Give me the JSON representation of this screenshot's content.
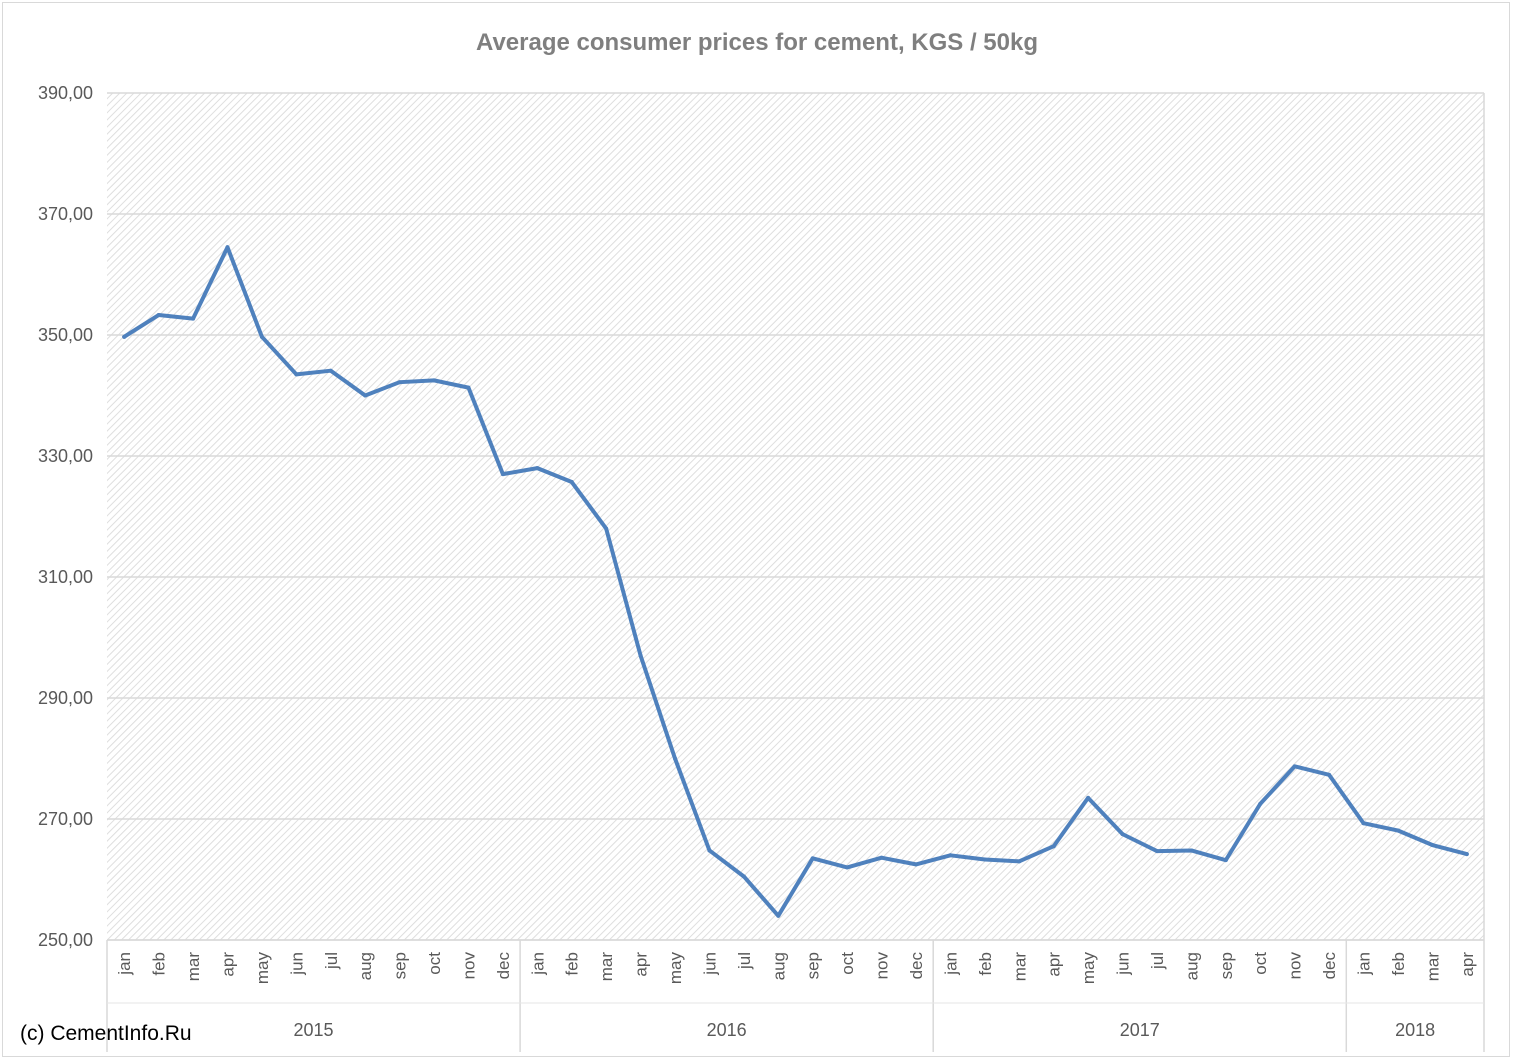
{
  "chart_data": {
    "type": "line",
    "title": "Average consumer prices for cement, KGS / 50kg",
    "xlabel": "",
    "ylabel": "",
    "ylim": [
      250,
      390
    ],
    "yticks": [
      "250,00",
      "270,00",
      "290,00",
      "310,00",
      "330,00",
      "350,00",
      "370,00",
      "390,00"
    ],
    "grid": true,
    "categories": [
      "jan",
      "feb",
      "mar",
      "apr",
      "may",
      "jun",
      "jul",
      "aug",
      "sep",
      "oct",
      "nov",
      "dec",
      "jan",
      "feb",
      "mar",
      "apr",
      "may",
      "jun",
      "jul",
      "aug",
      "sep",
      "oct",
      "nov",
      "dec",
      "jan",
      "feb",
      "mar",
      "apr",
      "may",
      "jun",
      "jul",
      "aug",
      "sep",
      "oct",
      "nov",
      "dec",
      "jan",
      "feb",
      "mar",
      "apr"
    ],
    "year_groups": [
      {
        "label": "2015",
        "count": 12
      },
      {
        "label": "2016",
        "count": 12
      },
      {
        "label": "2017",
        "count": 12
      },
      {
        "label": "2018",
        "count": 4
      }
    ],
    "series": [
      {
        "values": [
          349.7,
          353.3,
          352.7,
          364.5,
          349.7,
          343.5,
          344.1,
          340.0,
          342.2,
          342.5,
          341.3,
          327.0,
          328.0,
          325.7,
          318.0,
          297.0,
          280.0,
          264.8,
          260.5,
          254.0,
          263.5,
          262.0,
          263.6,
          262.5,
          264.0,
          263.3,
          263.0,
          265.5,
          273.5,
          267.5,
          264.7,
          264.8,
          263.2,
          272.5,
          278.7,
          277.3,
          269.3,
          268.1,
          265.7,
          264.2
        ]
      }
    ],
    "line_color": "#4f81bd"
  },
  "credit": "(c) CementInfo.Ru"
}
